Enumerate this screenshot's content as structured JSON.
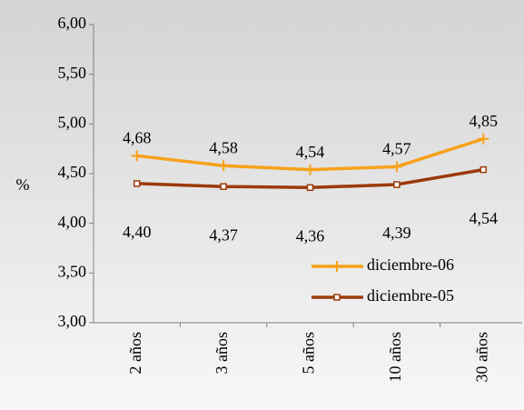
{
  "chart_data": {
    "type": "line",
    "ylabel": "%",
    "categories": [
      "2 años",
      "3 años",
      "5 años",
      "10 años",
      "30 años"
    ],
    "series": [
      {
        "name": "diciembre-06",
        "color": "#f7a11a",
        "marker": "plus",
        "values": [
          4.68,
          4.58,
          4.54,
          4.57,
          4.85
        ],
        "value_labels": [
          "4,68",
          "4,58",
          "4,54",
          "4,57",
          "4,85"
        ]
      },
      {
        "name": "diciembre-05",
        "color": "#9c3a0a",
        "marker": "square",
        "values": [
          4.4,
          4.37,
          4.36,
          4.39,
          4.54
        ],
        "value_labels": [
          "4,40",
          "4,37",
          "4,36",
          "4,39",
          "4,54"
        ]
      }
    ],
    "ylim": [
      3,
      6
    ],
    "yticks": [
      {
        "value": 3,
        "label": "3,00"
      },
      {
        "value": 3.5,
        "label": "3,50"
      },
      {
        "value": 4,
        "label": "4,00"
      },
      {
        "value": 4.5,
        "label": "4,50"
      },
      {
        "value": 5,
        "label": "5,00"
      },
      {
        "value": 5.5,
        "label": "5,50"
      },
      {
        "value": 6,
        "label": "6,00"
      }
    ],
    "grid": false,
    "legend": "lower right"
  }
}
